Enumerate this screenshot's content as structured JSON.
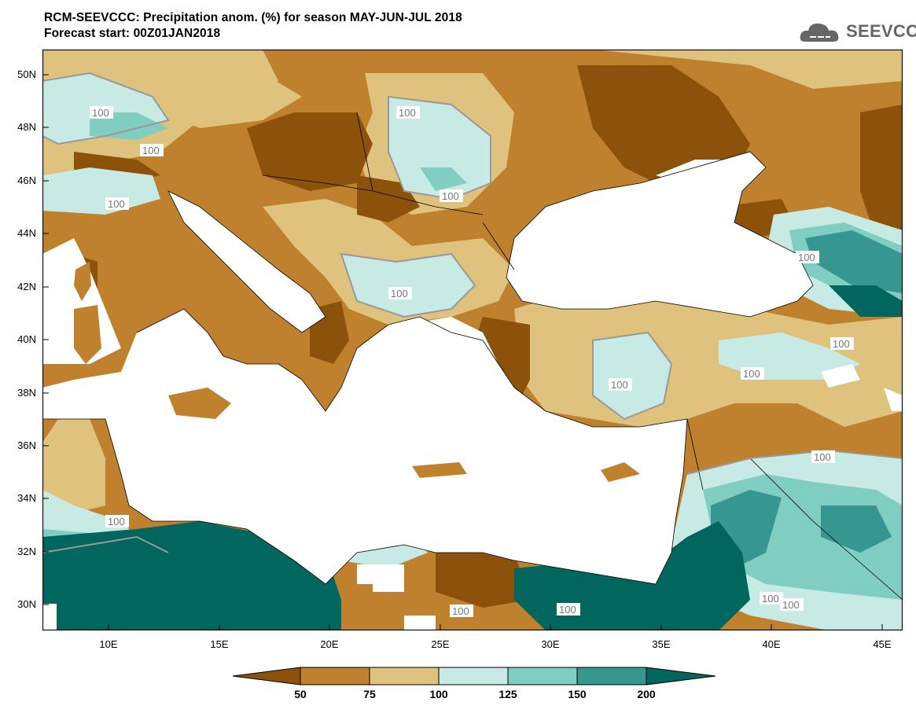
{
  "title": "RCM-SEEVCCC: Precipitation anom. (%) for season MAY-JUN-JUL 2018",
  "subtitle": "Forecast start: 00Z01JAN2018",
  "logo": {
    "text": "SEEVCCC",
    "icon": "cloud-icon"
  },
  "axes": {
    "lat_ticks": [
      "50N",
      "48N",
      "46N",
      "44N",
      "42N",
      "40N",
      "38N",
      "36N",
      "34N",
      "32N",
      "30N"
    ],
    "lon_ticks": [
      "10E",
      "15E",
      "20E",
      "25E",
      "30E",
      "35E",
      "40E",
      "45E"
    ]
  },
  "colorbar": {
    "ticks": [
      "50",
      "75",
      "100",
      "125",
      "150",
      "200"
    ],
    "colors": {
      "below50": "#8c510a",
      "50_75": "#bf812d",
      "75_100": "#dfc27d",
      "100_125": "#c7eae5",
      "125_150": "#80cdc1",
      "150_200": "#35978f",
      "above200": "#01665e"
    }
  },
  "contour_label": "100"
}
